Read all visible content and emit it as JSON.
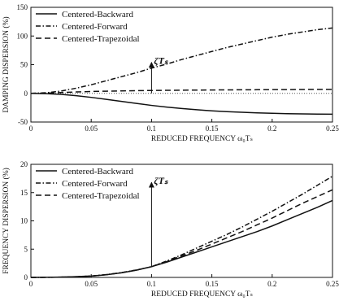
{
  "chart_data": [
    {
      "type": "line",
      "xlabel": "REDUCED FREQUENCY ω₀Tₛ",
      "ylabel": "DAMPING DISPERSION (%)",
      "xlim": [
        0,
        0.25
      ],
      "ylim": [
        -50,
        150
      ],
      "xticks": [
        "0",
        "0.05",
        "0.1",
        "0.15",
        "0.2",
        "0.25"
      ],
      "yticks": [
        "-50",
        "0",
        "50",
        "100",
        "150"
      ],
      "grid": false,
      "legend_placement": "top-left",
      "annotation": {
        "text": "ζTₛ",
        "x": 0.1,
        "arrow_from": 0,
        "arrow_to": 54
      },
      "reference_line": {
        "y": 0,
        "style": "dotted"
      },
      "series": [
        {
          "name": "Centered-Backward",
          "style": "solid",
          "x": [
            0,
            0.0125,
            0.025,
            0.0375,
            0.05,
            0.0625,
            0.075,
            0.0875,
            0.1,
            0.1125,
            0.125,
            0.1375,
            0.15,
            0.1625,
            0.175,
            0.1875,
            0.2,
            0.2125,
            0.225,
            0.2375,
            0.25
          ],
          "y": [
            0,
            -0.5,
            -1.8,
            -4,
            -7,
            -10.5,
            -14,
            -17.5,
            -21,
            -24,
            -26.5,
            -28.5,
            -30.5,
            -32,
            -33,
            -34,
            -34.8,
            -35.4,
            -35.8,
            -36.1,
            -36.3
          ]
        },
        {
          "name": "Centered-Forward",
          "style": "dash-dot",
          "x": [
            0,
            0.0125,
            0.025,
            0.0375,
            0.05,
            0.0625,
            0.075,
            0.0875,
            0.1,
            0.1125,
            0.125,
            0.1375,
            0.15,
            0.1625,
            0.175,
            0.1875,
            0.2,
            0.2125,
            0.225,
            0.2375,
            0.25
          ],
          "y": [
            0,
            1,
            4,
            9,
            15,
            22,
            29,
            36,
            44,
            51,
            59,
            66,
            73,
            80,
            86,
            92,
            98,
            103,
            107,
            111,
            114
          ]
        },
        {
          "name": "Centered-Trapezoidal",
          "style": "dashed",
          "x": [
            0,
            0.0125,
            0.025,
            0.0375,
            0.05,
            0.0625,
            0.075,
            0.0875,
            0.1,
            0.1125,
            0.125,
            0.1375,
            0.15,
            0.1625,
            0.175,
            0.1875,
            0.2,
            0.2125,
            0.225,
            0.2375,
            0.25
          ],
          "y": [
            0,
            0.4,
            1.4,
            2.4,
            3.2,
            3.8,
            4.3,
            4.7,
            5,
            5.3,
            5.5,
            5.7,
            5.9,
            6,
            6.2,
            6.3,
            6.5,
            6.6,
            6.8,
            6.9,
            7
          ]
        }
      ]
    },
    {
      "type": "line",
      "xlabel": "REDUCED FREQUENCY ω₀Tₛ",
      "ylabel": "FREQUENCY DISPERSION (%)",
      "xlim": [
        0,
        0.25
      ],
      "ylim": [
        0,
        20
      ],
      "xticks": [
        "0",
        "0.05",
        "0.1",
        "0.15",
        "0.2",
        "0.25"
      ],
      "yticks": [
        "0",
        "5",
        "10",
        "15",
        "20"
      ],
      "grid": false,
      "legend_placement": "top-left",
      "annotation": {
        "text": "ζTₛ",
        "x": 0.1,
        "arrow_from": 1.8,
        "arrow_to": 16.8
      },
      "series": [
        {
          "name": "Centered-Backward",
          "style": "solid",
          "x": [
            0,
            0.0125,
            0.025,
            0.0375,
            0.05,
            0.0625,
            0.075,
            0.0875,
            0.1,
            0.1125,
            0.125,
            0.1375,
            0.15,
            0.1625,
            0.175,
            0.1875,
            0.2,
            0.2125,
            0.225,
            0.2375,
            0.25
          ],
          "y": [
            0,
            0.01,
            0.05,
            0.12,
            0.23,
            0.47,
            0.81,
            1.28,
            1.9,
            2.7,
            3.6,
            4.5,
            5.4,
            6.3,
            7.2,
            8.1,
            9.1,
            10.2,
            11.3,
            12.4,
            13.6
          ]
        },
        {
          "name": "Centered-Forward",
          "style": "dash-dot",
          "x": [
            0,
            0.0125,
            0.025,
            0.0375,
            0.05,
            0.0625,
            0.075,
            0.0875,
            0.1,
            0.1125,
            0.125,
            0.1375,
            0.15,
            0.1625,
            0.175,
            0.1875,
            0.2,
            0.2125,
            0.225,
            0.2375,
            0.25
          ],
          "y": [
            0,
            0.01,
            0.05,
            0.13,
            0.25,
            0.5,
            0.85,
            1.32,
            1.9,
            2.9,
            4,
            5.2,
            6.4,
            7.6,
            8.9,
            10.3,
            11.7,
            13.2,
            14.7,
            16.3,
            17.9
          ]
        },
        {
          "name": "Centered-Trapezoidal",
          "style": "dashed",
          "x": [
            0,
            0.0125,
            0.025,
            0.0375,
            0.05,
            0.0625,
            0.075,
            0.0875,
            0.1,
            0.1125,
            0.125,
            0.1375,
            0.15,
            0.1625,
            0.175,
            0.1875,
            0.2,
            0.2125,
            0.225,
            0.2375,
            0.25
          ],
          "y": [
            0,
            0.01,
            0.05,
            0.12,
            0.24,
            0.48,
            0.83,
            1.3,
            1.9,
            2.8,
            3.8,
            4.8,
            5.9,
            7,
            8.1,
            9.3,
            10.5,
            11.8,
            13.1,
            14.3,
            15.5
          ]
        }
      ]
    }
  ]
}
